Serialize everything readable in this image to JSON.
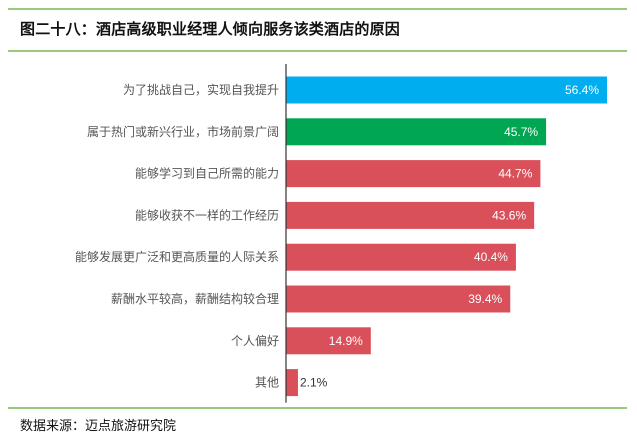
{
  "header": {
    "title": "图二十八：酒店高级职业经理人倾向服务该类酒店的原因"
  },
  "footer": {
    "source": "数据来源：迈点旅游研究院"
  },
  "chart_data": {
    "type": "bar",
    "orientation": "horizontal",
    "title": "图二十八：酒店高级职业经理人倾向服务该类酒店的原因",
    "categories": [
      "为了挑战自己，实现自我提升",
      "属于热门或新兴行业，市场前景广阔",
      "能够学习到自己所需的能力",
      "能够收获不一样的工作经历",
      "能够发展更广泛和更高质量的人际关系",
      "薪酬水平较高，薪酬结构较合理",
      "个人偏好",
      "其他"
    ],
    "values": [
      56.4,
      45.7,
      44.7,
      43.6,
      40.4,
      39.4,
      14.9,
      2.1
    ],
    "value_labels": [
      "56.4%",
      "45.7%",
      "44.7%",
      "43.6%",
      "40.4%",
      "39.4%",
      "14.9%",
      "2.1%"
    ],
    "colors": [
      "#00aeef",
      "#00a651",
      "#d9505a",
      "#d9505a",
      "#d9505a",
      "#d9505a",
      "#d9505a",
      "#d9505a"
    ],
    "xlim": [
      0,
      56.4
    ],
    "grid": false,
    "legend": "none"
  }
}
